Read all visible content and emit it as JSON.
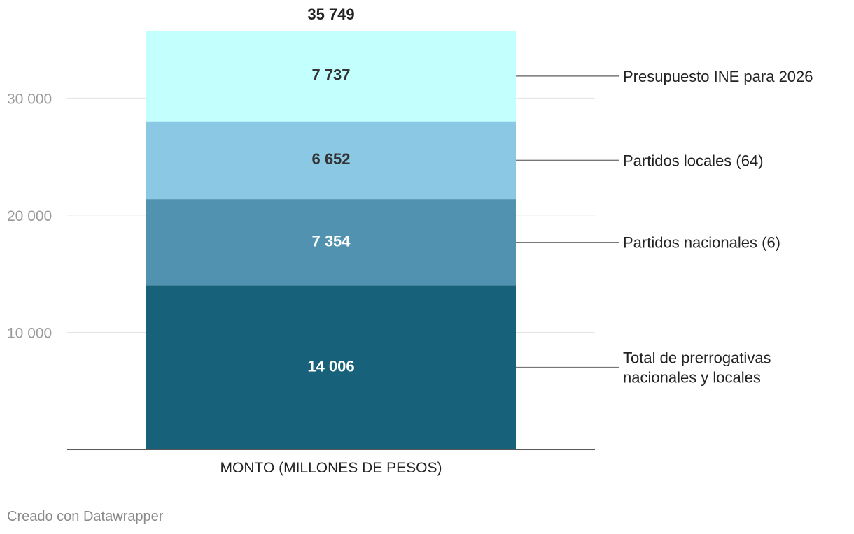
{
  "chart_data": {
    "type": "bar",
    "stacked": true,
    "categories": [
      "MONTO (MILLONES DE PESOS)"
    ],
    "series": [
      {
        "name": "Total de prerrogativas nacionales y locales",
        "name_lines": [
          "Total de prerrogativas",
          "nacionales y locales"
        ],
        "values": [
          14006
        ],
        "label": "14 006",
        "color": "#17617a",
        "label_color": "#ffffff"
      },
      {
        "name": "Partidos nacionales (6)",
        "name_lines": [
          "Partidos nacionales (6)"
        ],
        "values": [
          7354
        ],
        "label": "7 354",
        "color": "#5192b0",
        "label_color": "#ffffff"
      },
      {
        "name": "Partidos locales (64)",
        "name_lines": [
          "Partidos locales (64)"
        ],
        "values": [
          6652
        ],
        "label": "6 652",
        "color": "#8ac8e4",
        "label_color": "#333333"
      },
      {
        "name": "Presupuesto INE para 2026",
        "name_lines": [
          "Presupuesto INE para 2026"
        ],
        "values": [
          7737
        ],
        "label": "7 737",
        "color": "#c2fffd",
        "label_color": "#333333"
      }
    ],
    "total": 35749,
    "total_label": "35 749",
    "y_ticks": [
      {
        "value": 10000,
        "label": "10 000"
      },
      {
        "value": 20000,
        "label": "20 000"
      },
      {
        "value": 30000,
        "label": "30 000"
      }
    ],
    "ylim": [
      0,
      35749
    ],
    "grid": true,
    "legend_placement": "right, inline labels",
    "title": "",
    "xlabel": "",
    "ylabel": ""
  },
  "footer": {
    "credit": "Creado con Datawrapper"
  }
}
